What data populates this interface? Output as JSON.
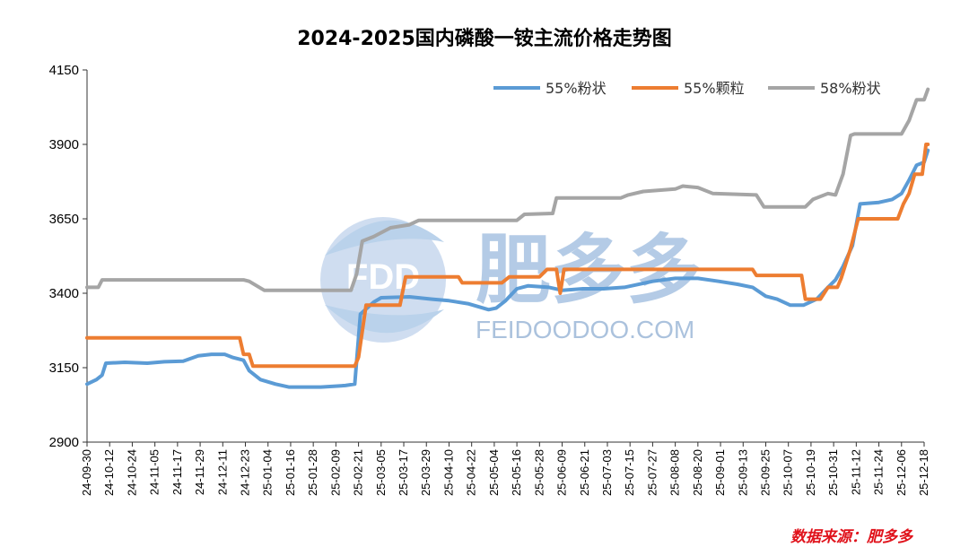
{
  "chart_data": {
    "type": "line",
    "title": "2024-2025国内磷酸一铵主流价格走势图",
    "xlabel": "",
    "ylabel": "",
    "ylim": [
      2900,
      4150
    ],
    "yticks": [
      2900,
      3150,
      3400,
      3650,
      3900,
      4150
    ],
    "grid": false,
    "legend_position": "top-right",
    "x_tick_labels": [
      "24-09-30",
      "24-10-12",
      "24-10-24",
      "24-11-05",
      "24-11-17",
      "24-11-29",
      "24-12-11",
      "24-12-23",
      "25-01-04",
      "25-01-16",
      "25-01-28",
      "25-02-09",
      "25-02-21",
      "25-03-05",
      "25-03-17",
      "25-03-29",
      "25-04-10",
      "25-04-22",
      "25-05-04",
      "25-05-16",
      "25-05-28",
      "25-06-09",
      "25-06-21",
      "25-07-03",
      "25-07-15",
      "25-07-27",
      "25-08-08",
      "25-08-20",
      "25-09-01",
      "25-09-13",
      "25-09-25",
      "25-10-07",
      "25-10-19",
      "25-10-31",
      "25-11-12",
      "25-11-24",
      "25-12-06",
      "25-12-18"
    ],
    "x_start": "24-09-30",
    "x_end": "25-12-18",
    "series": [
      {
        "name": "55%粉状",
        "color": "#5b9bd5",
        "points": [
          [
            "24-09-30",
            3095
          ],
          [
            "24-10-05",
            3110
          ],
          [
            "24-10-08",
            3125
          ],
          [
            "24-10-10",
            3165
          ],
          [
            "24-10-20",
            3168
          ],
          [
            "24-11-01",
            3165
          ],
          [
            "24-11-10",
            3170
          ],
          [
            "24-11-20",
            3172
          ],
          [
            "24-11-28",
            3190
          ],
          [
            "24-12-05",
            3195
          ],
          [
            "24-12-12",
            3195
          ],
          [
            "24-12-16",
            3185
          ],
          [
            "24-12-22",
            3175
          ],
          [
            "24-12-25",
            3140
          ],
          [
            "24-12-31",
            3110
          ],
          [
            "25-01-08",
            3095
          ],
          [
            "25-01-15",
            3085
          ],
          [
            "25-02-01",
            3085
          ],
          [
            "25-02-14",
            3090
          ],
          [
            "25-02-19",
            3095
          ],
          [
            "25-02-22",
            3330
          ],
          [
            "25-03-01",
            3370
          ],
          [
            "25-03-05",
            3385
          ],
          [
            "25-03-20",
            3388
          ],
          [
            "25-04-01",
            3380
          ],
          [
            "25-04-10",
            3375
          ],
          [
            "25-04-20",
            3365
          ],
          [
            "25-05-01",
            3345
          ],
          [
            "25-05-05",
            3350
          ],
          [
            "25-05-10",
            3375
          ],
          [
            "25-05-16",
            3415
          ],
          [
            "25-05-22",
            3425
          ],
          [
            "25-06-02",
            3420
          ],
          [
            "25-06-09",
            3410
          ],
          [
            "25-06-20",
            3415
          ],
          [
            "25-07-01",
            3415
          ],
          [
            "25-07-12",
            3420
          ],
          [
            "25-07-27",
            3440
          ],
          [
            "25-08-08",
            3450
          ],
          [
            "25-08-20",
            3450
          ],
          [
            "25-08-31",
            3440
          ],
          [
            "25-09-10",
            3430
          ],
          [
            "25-09-18",
            3420
          ],
          [
            "25-09-25",
            3390
          ],
          [
            "25-10-01",
            3380
          ],
          [
            "25-10-08",
            3360
          ],
          [
            "25-10-15",
            3360
          ],
          [
            "25-10-22",
            3380
          ],
          [
            "25-10-28",
            3420
          ],
          [
            "25-11-01",
            3445
          ],
          [
            "25-11-05",
            3490
          ],
          [
            "25-11-10",
            3560
          ],
          [
            "25-11-14",
            3700
          ],
          [
            "25-11-24",
            3705
          ],
          [
            "25-12-01",
            3715
          ],
          [
            "25-12-06",
            3735
          ],
          [
            "25-12-10",
            3780
          ],
          [
            "25-12-14",
            3830
          ],
          [
            "25-12-18",
            3840
          ],
          [
            "25-12-20",
            3880
          ]
        ]
      },
      {
        "name": "55%颗粒",
        "color": "#ed7d31",
        "points": [
          [
            "24-09-30",
            3250
          ],
          [
            "24-12-20",
            3250
          ],
          [
            "24-12-22",
            3195
          ],
          [
            "24-12-25",
            3195
          ],
          [
            "24-12-27",
            3155
          ],
          [
            "25-02-19",
            3155
          ],
          [
            "25-02-21",
            3185
          ],
          [
            "25-02-25",
            3360
          ],
          [
            "25-03-15",
            3360
          ],
          [
            "25-03-18",
            3455
          ],
          [
            "25-04-15",
            3455
          ],
          [
            "25-04-17",
            3435
          ],
          [
            "25-05-08",
            3435
          ],
          [
            "25-05-12",
            3455
          ],
          [
            "25-05-28",
            3455
          ],
          [
            "25-06-01",
            3480
          ],
          [
            "25-06-06",
            3480
          ],
          [
            "25-06-08",
            3400
          ],
          [
            "25-06-10",
            3480
          ],
          [
            "25-09-18",
            3480
          ],
          [
            "25-09-20",
            3460
          ],
          [
            "25-10-14",
            3460
          ],
          [
            "25-10-16",
            3380
          ],
          [
            "25-10-24",
            3380
          ],
          [
            "25-10-28",
            3420
          ],
          [
            "25-11-02",
            3420
          ],
          [
            "25-11-04",
            3450
          ],
          [
            "25-11-09",
            3550
          ],
          [
            "25-11-13",
            3650
          ],
          [
            "25-12-04",
            3650
          ],
          [
            "25-12-07",
            3700
          ],
          [
            "25-12-10",
            3735
          ],
          [
            "25-12-13",
            3800
          ],
          [
            "25-12-17",
            3800
          ],
          [
            "25-12-19",
            3900
          ],
          [
            "25-12-20",
            3900
          ]
        ]
      },
      {
        "name": "58%粉状",
        "color": "#a5a5a5",
        "points": [
          [
            "24-09-30",
            3420
          ],
          [
            "24-10-06",
            3420
          ],
          [
            "24-10-08",
            3445
          ],
          [
            "24-12-22",
            3445
          ],
          [
            "24-12-25",
            3440
          ],
          [
            "24-12-29",
            3425
          ],
          [
            "25-01-02",
            3410
          ],
          [
            "25-02-17",
            3410
          ],
          [
            "25-02-20",
            3465
          ],
          [
            "25-02-23",
            3575
          ],
          [
            "25-03-01",
            3590
          ],
          [
            "25-03-10",
            3620
          ],
          [
            "25-03-20",
            3630
          ],
          [
            "25-03-25",
            3645
          ],
          [
            "25-05-16",
            3645
          ],
          [
            "25-05-20",
            3665
          ],
          [
            "25-06-04",
            3668
          ],
          [
            "25-06-06",
            3720
          ],
          [
            "25-07-10",
            3720
          ],
          [
            "25-07-14",
            3730
          ],
          [
            "25-07-22",
            3742
          ],
          [
            "25-08-08",
            3750
          ],
          [
            "25-08-12",
            3760
          ],
          [
            "25-08-20",
            3755
          ],
          [
            "25-08-28",
            3735
          ],
          [
            "25-09-20",
            3730
          ],
          [
            "25-09-24",
            3690
          ],
          [
            "25-10-16",
            3690
          ],
          [
            "25-10-20",
            3715
          ],
          [
            "25-10-28",
            3735
          ],
          [
            "25-11-01",
            3730
          ],
          [
            "25-11-05",
            3800
          ],
          [
            "25-11-09",
            3930
          ],
          [
            "25-11-11",
            3935
          ],
          [
            "25-12-06",
            3935
          ],
          [
            "25-12-10",
            3980
          ],
          [
            "25-12-14",
            4050
          ],
          [
            "25-12-18",
            4050
          ],
          [
            "25-12-20",
            4085
          ]
        ]
      }
    ]
  },
  "watermark": {
    "logo_text": "FDD",
    "brand_cn": "肥多多",
    "brand_en": "FEIDOODOO.COM"
  },
  "source": "数据来源：肥多多"
}
